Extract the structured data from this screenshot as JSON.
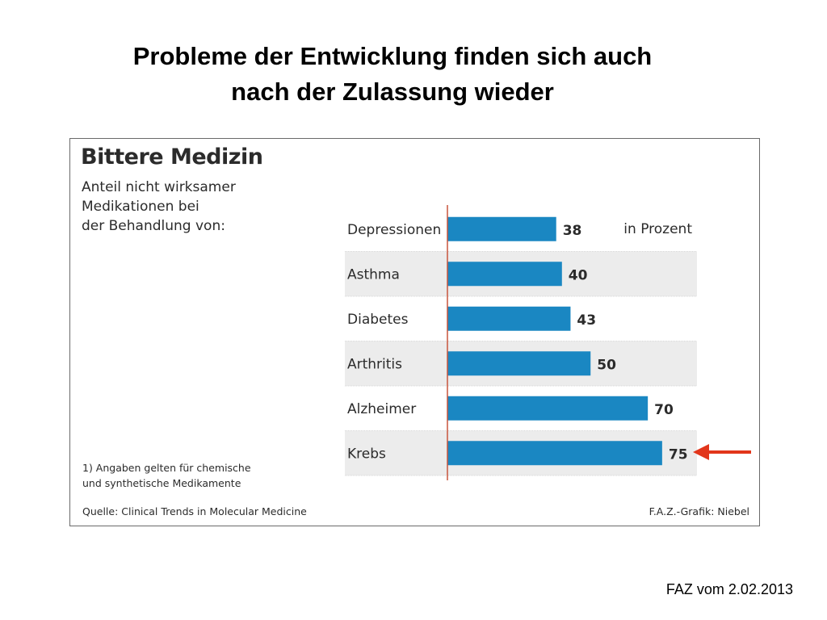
{
  "slide": {
    "title_line1": "Probleme der Entwicklung finden sich auch",
    "title_line2": "nach der Zulassung wieder",
    "date_note": "FAZ vom 2.02.2013"
  },
  "figure": {
    "title": "Bittere Medizin",
    "subtitle_line1": "Anteil nicht wirksamer",
    "subtitle_line2": "Medikationen bei",
    "subtitle_line3": "der Behandlung von:",
    "unit_label": "in Prozent",
    "footnote_line1": "1) Angaben gelten für chemische",
    "footnote_line2": "und synthetische Medikamente",
    "source": "Quelle: Clinical Trends in Molecular Medicine",
    "credit": "F.A.Z.-Grafik: Niebel"
  },
  "colors": {
    "bar": "#1a87c2",
    "stripe": "#ececec",
    "axis": "#c8553d",
    "arrow": "#e2361b"
  },
  "chart_data": {
    "type": "bar",
    "orientation": "horizontal",
    "title": "Bittere Medizin",
    "subtitle": "Anteil nicht wirksamer Medikationen bei der Behandlung von:",
    "unit": "in Prozent",
    "categories": [
      "Depressionen",
      "Asthma",
      "Diabetes",
      "Arthritis",
      "Alzheimer",
      "Krebs"
    ],
    "values": [
      38,
      40,
      43,
      50,
      70,
      75
    ],
    "xlim": [
      0,
      100
    ],
    "highlight": "Krebs",
    "legend": "none"
  }
}
